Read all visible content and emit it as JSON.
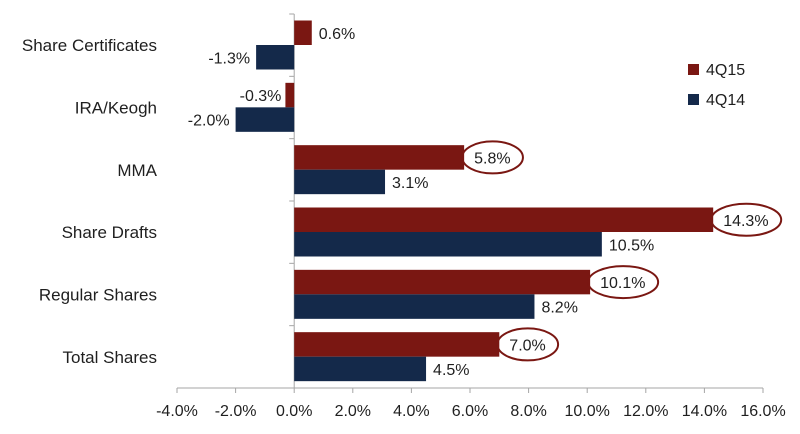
{
  "chart_data": {
    "type": "bar",
    "orientation": "horizontal",
    "categories": [
      "Share Certificates",
      "IRA/Keogh",
      "MMA",
      "Share Drafts",
      "Regular Shares",
      "Total Shares"
    ],
    "series": [
      {
        "name": "4Q15",
        "color": "#7a1712",
        "values": [
          0.6,
          -0.3,
          5.8,
          14.3,
          10.1,
          7.0
        ],
        "labels": [
          "0.6%",
          "-0.3%",
          "5.8%",
          "14.3%",
          "10.1%",
          "7.0%"
        ]
      },
      {
        "name": "4Q14",
        "color": "#14294a",
        "values": [
          -1.3,
          -2.0,
          3.1,
          10.5,
          8.2,
          4.5
        ],
        "labels": [
          "-1.3%",
          "-2.0%",
          "3.1%",
          "10.5%",
          "8.2%",
          "4.5%"
        ]
      }
    ],
    "xlim": [
      -4,
      16
    ],
    "x_ticks": [
      -4,
      -2,
      0,
      2,
      4,
      6,
      8,
      10,
      12,
      14,
      16
    ],
    "x_tick_labels": [
      "-4.0%",
      "-2.0%",
      "0.0%",
      "2.0%",
      "4.0%",
      "6.0%",
      "8.0%",
      "10.0%",
      "12.0%",
      "14.0%",
      "16.0%"
    ],
    "highlighted": [
      {
        "series": "4Q15",
        "category": "MMA"
      },
      {
        "series": "4Q15",
        "category": "Share Drafts"
      },
      {
        "series": "4Q15",
        "category": "Regular Shares"
      },
      {
        "series": "4Q15",
        "category": "Total Shares"
      }
    ],
    "highlight_color": "#7a1712",
    "legend_position": "top-right",
    "grid": false,
    "title": "",
    "xlabel": "",
    "ylabel": ""
  }
}
